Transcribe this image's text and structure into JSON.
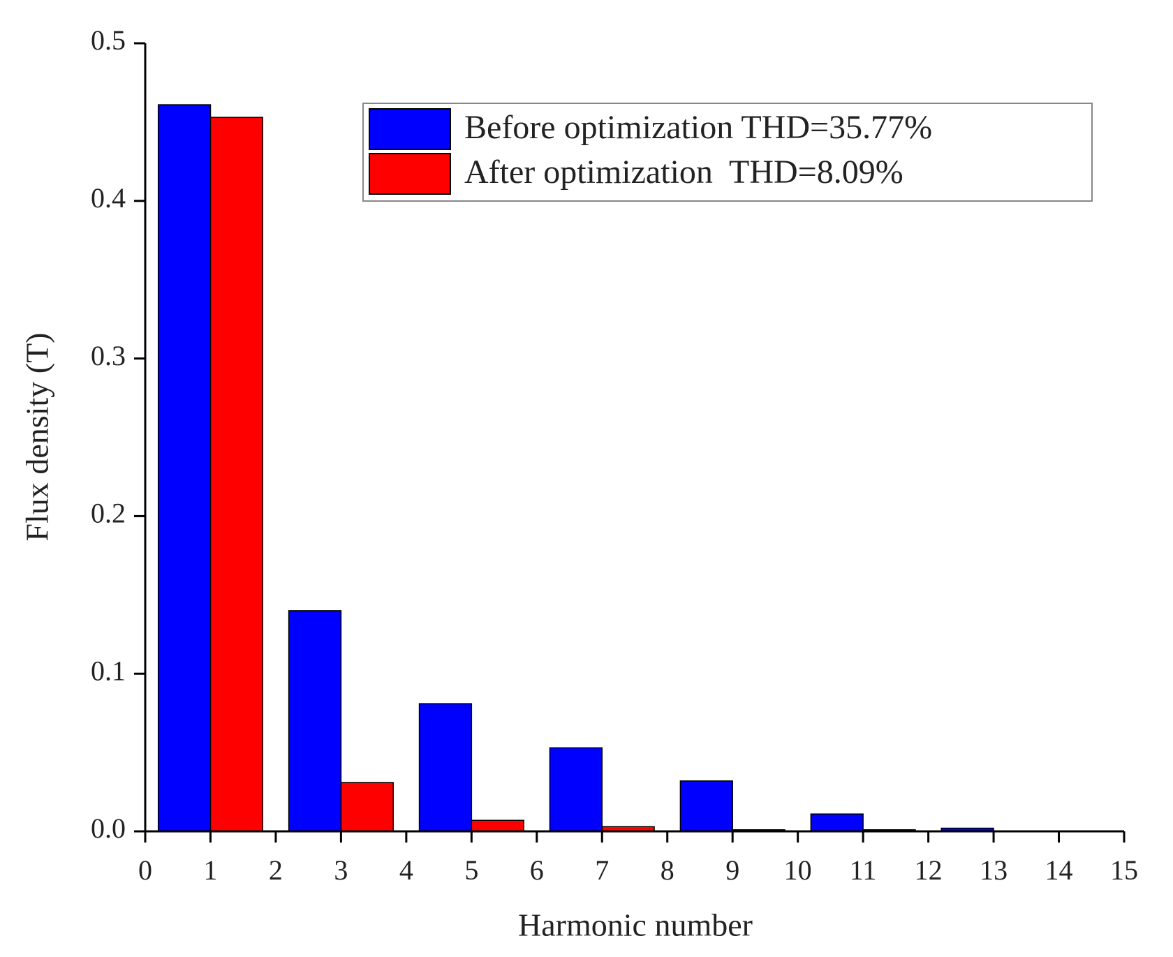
{
  "chart_data": {
    "type": "bar",
    "x_label": "Harmonic number",
    "y_label": "Flux density (T)",
    "x": [
      1,
      3,
      5,
      7,
      9,
      11,
      13
    ],
    "bar_width": 0.8,
    "series": [
      {
        "name": "Before optimization THD=35.77%",
        "color": "#0000ff",
        "values": [
          0.461,
          0.14,
          0.081,
          0.053,
          0.032,
          0.011,
          0.002
        ]
      },
      {
        "name": "After optimization  THD=8.09%",
        "color": "#ff0000",
        "values": [
          0.453,
          0.031,
          0.007,
          0.003,
          0.001,
          0.001,
          0
        ]
      }
    ],
    "xlim": [
      0,
      15
    ],
    "xticks": [
      0,
      1,
      2,
      3,
      4,
      5,
      6,
      7,
      8,
      9,
      10,
      11,
      12,
      13,
      14,
      15
    ],
    "ylim": [
      0,
      0.5
    ],
    "yticks": [
      {
        "value": 0,
        "label": "0.0"
      },
      0.1,
      0.2,
      0.3,
      0.4,
      0.5
    ],
    "legend": "upper right"
  }
}
